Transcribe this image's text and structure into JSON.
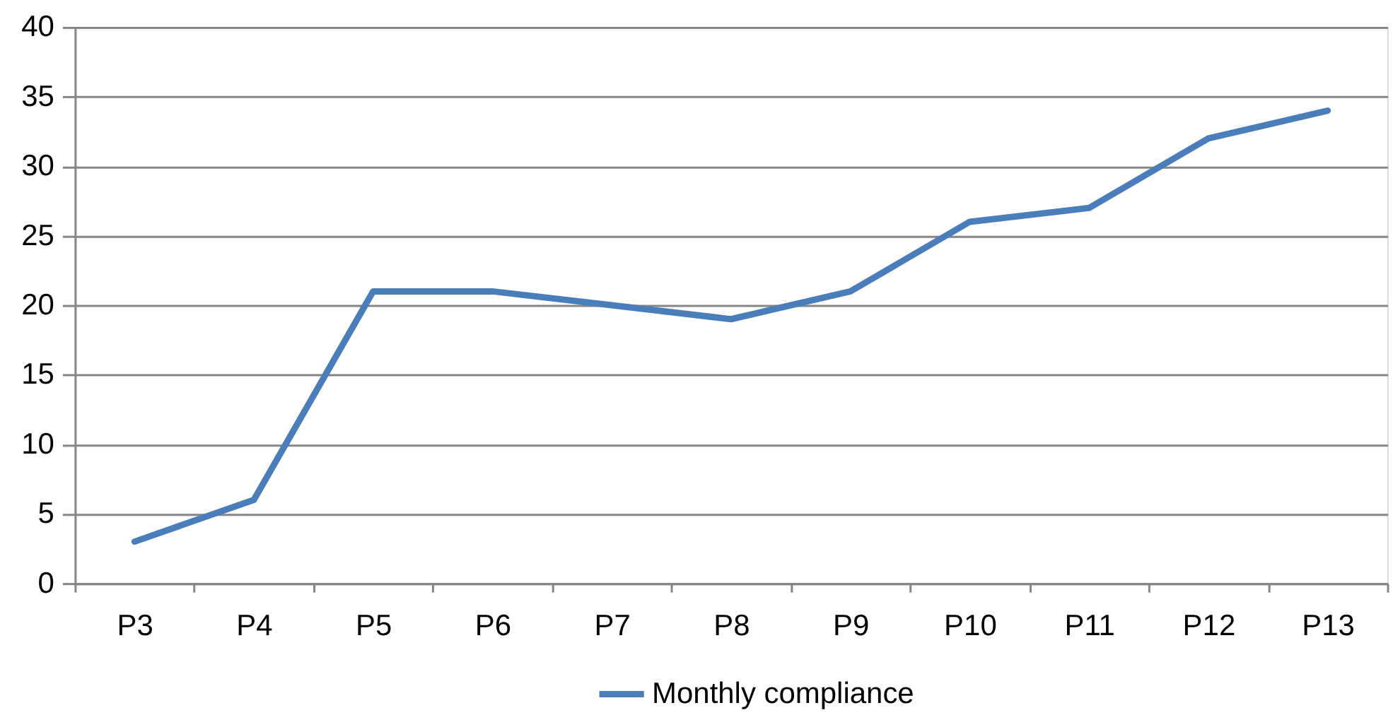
{
  "chart_data": {
    "type": "line",
    "categories": [
      "P3",
      "P4",
      "P5",
      "P6",
      "P7",
      "P8",
      "P9",
      "P10",
      "P11",
      "P12",
      "P13"
    ],
    "series": [
      {
        "name": "Monthly compliance",
        "color": "#4a7ebb",
        "values": [
          3,
          6,
          21,
          21,
          20,
          19,
          21,
          26,
          27,
          32,
          34
        ]
      }
    ],
    "ylim": [
      0,
      40
    ],
    "yticks": [
      0,
      5,
      10,
      15,
      20,
      25,
      30,
      35,
      40
    ],
    "grid": "y",
    "legend": "bottom",
    "line_style": "solid"
  }
}
